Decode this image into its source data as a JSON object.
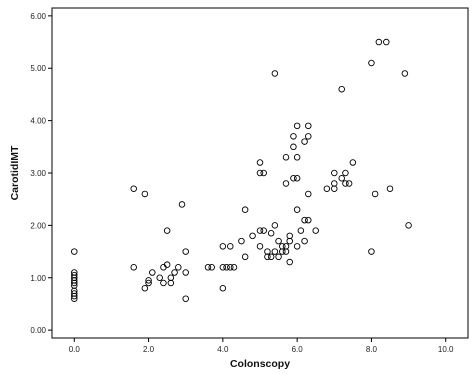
{
  "chart_data": {
    "type": "scatter",
    "title": "",
    "xlabel": "Colonscopy",
    "ylabel": "CarotidIMT",
    "xlim": [
      -0.6,
      10.6
    ],
    "ylim": [
      -0.15,
      6.15
    ],
    "x_ticks": [
      0,
      2,
      4,
      6,
      8,
      10
    ],
    "x_tick_labels": [
      "0.0",
      "2.0",
      "4.0",
      "6.0",
      "8.0",
      "10.0"
    ],
    "y_ticks": [
      0,
      1,
      2,
      3,
      4,
      5,
      6
    ],
    "y_tick_labels": [
      "0.00",
      "1.00",
      "2.00",
      "3.00",
      "4.00",
      "5.00",
      "6.00"
    ],
    "grid": false,
    "legend": "none",
    "marker": "open-circle",
    "colors": {
      "background": "#ffffff",
      "frame": "#000000",
      "marker_stroke": "#000000",
      "text": "#111111"
    },
    "points": [
      [
        0.0,
        1.5
      ],
      [
        0.0,
        1.1
      ],
      [
        0.0,
        1.05
      ],
      [
        0.0,
        1.0
      ],
      [
        0.0,
        0.95
      ],
      [
        0.0,
        0.9
      ],
      [
        0.0,
        0.85
      ],
      [
        0.0,
        0.75
      ],
      [
        0.0,
        0.7
      ],
      [
        0.0,
        0.65
      ],
      [
        0.0,
        0.6
      ],
      [
        1.6,
        2.7
      ],
      [
        1.6,
        1.2
      ],
      [
        1.9,
        2.6
      ],
      [
        1.9,
        0.8
      ],
      [
        2.0,
        0.95
      ],
      [
        2.0,
        0.9
      ],
      [
        2.1,
        1.1
      ],
      [
        2.3,
        1.0
      ],
      [
        2.4,
        1.2
      ],
      [
        2.4,
        0.9
      ],
      [
        2.5,
        1.9
      ],
      [
        2.5,
        1.25
      ],
      [
        2.6,
        1.0
      ],
      [
        2.6,
        0.9
      ],
      [
        2.7,
        1.1
      ],
      [
        2.8,
        1.2
      ],
      [
        2.9,
        2.4
      ],
      [
        3.0,
        1.5
      ],
      [
        3.0,
        1.1
      ],
      [
        3.0,
        0.6
      ],
      [
        3.6,
        1.2
      ],
      [
        3.7,
        1.2
      ],
      [
        4.0,
        1.6
      ],
      [
        4.0,
        1.2
      ],
      [
        4.0,
        0.8
      ],
      [
        4.1,
        1.2
      ],
      [
        4.2,
        1.6
      ],
      [
        4.2,
        1.2
      ],
      [
        4.3,
        1.2
      ],
      [
        4.5,
        1.7
      ],
      [
        4.6,
        2.3
      ],
      [
        4.6,
        1.4
      ],
      [
        4.8,
        1.8
      ],
      [
        5.0,
        3.2
      ],
      [
        5.0,
        3.0
      ],
      [
        5.0,
        1.9
      ],
      [
        5.0,
        1.6
      ],
      [
        5.1,
        3.0
      ],
      [
        5.1,
        1.9
      ],
      [
        5.2,
        1.5
      ],
      [
        5.2,
        1.4
      ],
      [
        5.3,
        1.85
      ],
      [
        5.3,
        1.4
      ],
      [
        5.4,
        4.9
      ],
      [
        5.4,
        2.0
      ],
      [
        5.4,
        1.5
      ],
      [
        5.5,
        1.7
      ],
      [
        5.5,
        1.4
      ],
      [
        5.6,
        1.6
      ],
      [
        5.6,
        1.5
      ],
      [
        5.7,
        3.3
      ],
      [
        5.7,
        2.8
      ],
      [
        5.7,
        1.6
      ],
      [
        5.7,
        1.5
      ],
      [
        5.8,
        1.8
      ],
      [
        5.8,
        1.7
      ],
      [
        5.8,
        1.3
      ],
      [
        5.9,
        3.7
      ],
      [
        5.9,
        3.5
      ],
      [
        5.9,
        2.9
      ],
      [
        6.0,
        3.9
      ],
      [
        6.0,
        3.3
      ],
      [
        6.0,
        2.9
      ],
      [
        6.0,
        2.3
      ],
      [
        6.0,
        1.6
      ],
      [
        6.1,
        1.9
      ],
      [
        6.2,
        3.6
      ],
      [
        6.2,
        2.1
      ],
      [
        6.2,
        1.7
      ],
      [
        6.3,
        3.9
      ],
      [
        6.3,
        3.7
      ],
      [
        6.3,
        2.6
      ],
      [
        6.3,
        2.1
      ],
      [
        6.5,
        1.9
      ],
      [
        6.8,
        2.7
      ],
      [
        7.0,
        3.0
      ],
      [
        7.0,
        2.8
      ],
      [
        7.0,
        2.7
      ],
      [
        7.2,
        4.6
      ],
      [
        7.2,
        2.9
      ],
      [
        7.3,
        3.0
      ],
      [
        7.3,
        2.8
      ],
      [
        7.4,
        2.8
      ],
      [
        7.5,
        3.2
      ],
      [
        8.0,
        5.1
      ],
      [
        8.0,
        1.5
      ],
      [
        8.1,
        2.6
      ],
      [
        8.2,
        5.5
      ],
      [
        8.4,
        5.5
      ],
      [
        8.5,
        2.7
      ],
      [
        8.9,
        4.9
      ],
      [
        9.0,
        2.0
      ]
    ]
  }
}
